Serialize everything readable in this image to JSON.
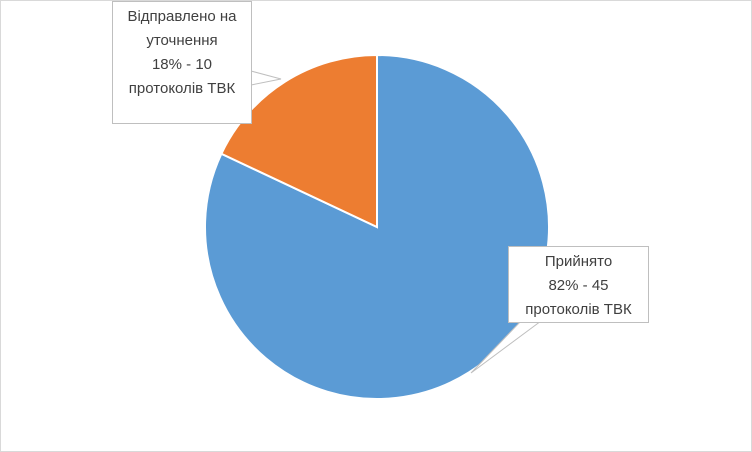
{
  "chart_data": {
    "type": "pie",
    "categories": [
      "Прийнято",
      "Відправлено на уточнення"
    ],
    "values": [
      82,
      18
    ],
    "value_labels": [
      "82% - 45 протоколів ТВК",
      "18% - 10 протоколів ТВК"
    ],
    "colors": [
      "#5b9bd5",
      "#ed7d31"
    ]
  }
}
